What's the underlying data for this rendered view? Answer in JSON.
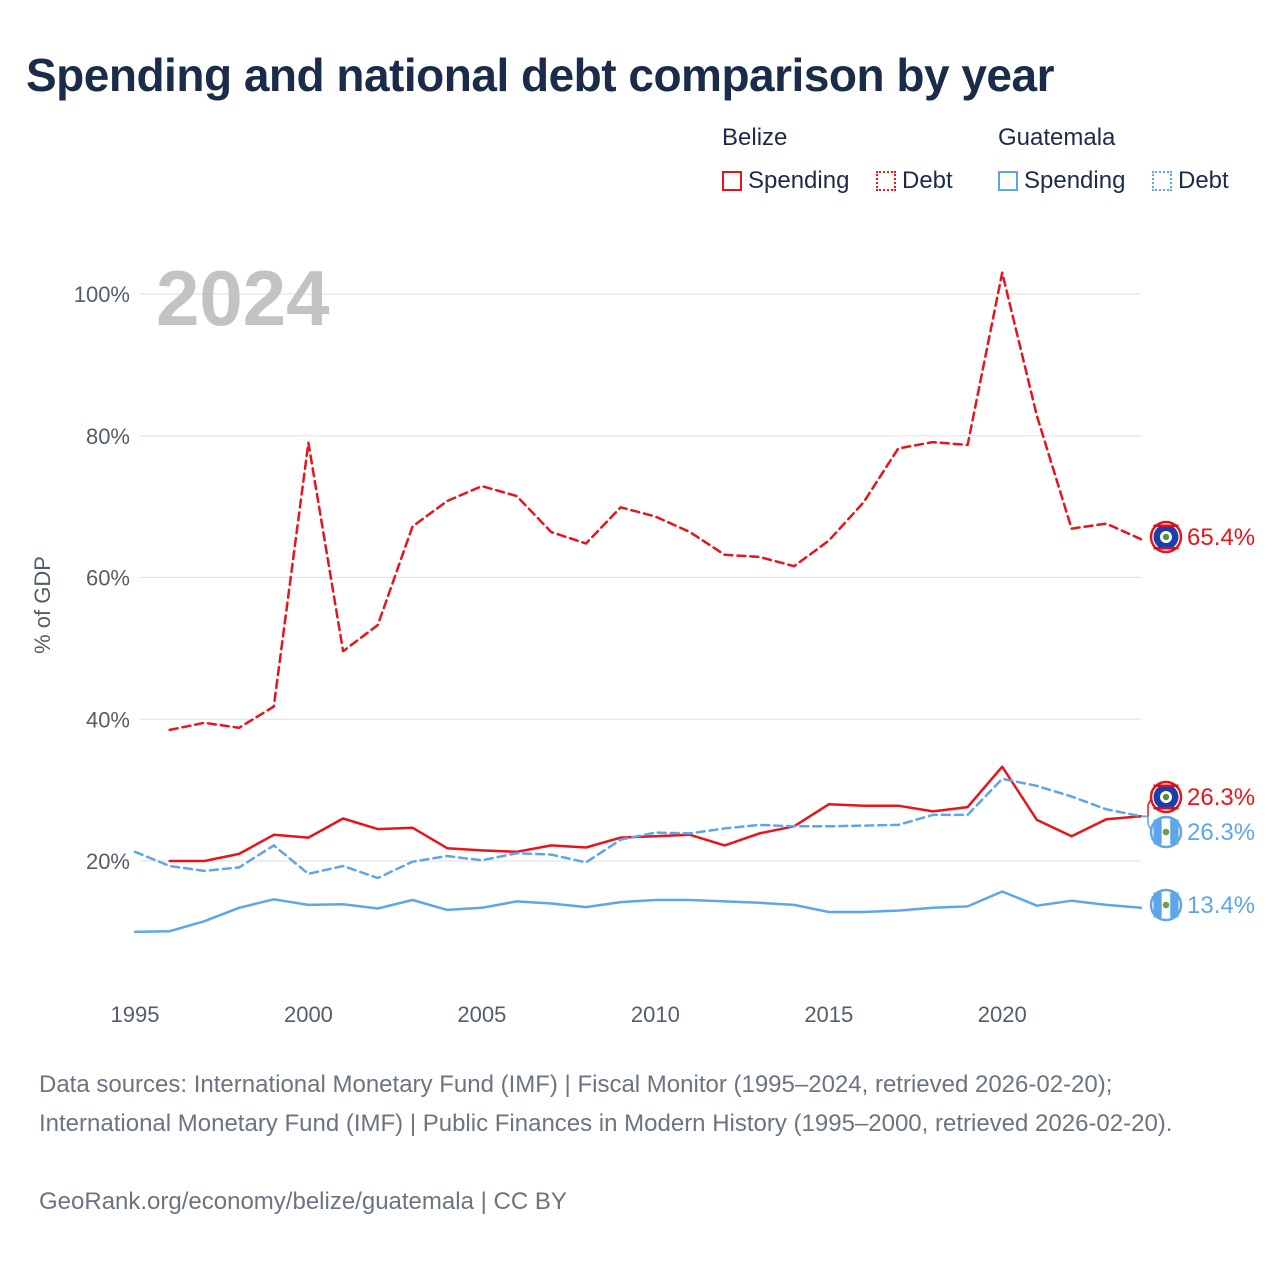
{
  "title": "Spending and national debt comparison by year",
  "legend": {
    "groups": [
      {
        "name": "Belize",
        "items": [
          "Spending",
          "Debt"
        ]
      },
      {
        "name": "Guatemala",
        "items": [
          "Spending",
          "Debt"
        ]
      }
    ]
  },
  "colors": {
    "belize": "#e8141c",
    "guatemala": "#5fa6e8",
    "title": "#1b2c4a",
    "grid": "#e4e4e4"
  },
  "year_watermark": "2024",
  "chart_data": {
    "type": "line",
    "title": "Spending and national debt comparison by year",
    "xlabel": "",
    "ylabel": "% of GDP",
    "xlim": [
      1995,
      2024
    ],
    "ylim": [
      8,
      105
    ],
    "x_ticks": [
      1995,
      2000,
      2005,
      2010,
      2015,
      2020
    ],
    "x_tick_labels": [
      "1995",
      "2000",
      "2005",
      "2010",
      "2015",
      "2020"
    ],
    "y_ticks": [
      20,
      40,
      60,
      80,
      100
    ],
    "y_tick_labels": [
      "20%",
      "40%",
      "60%",
      "80%",
      "100%"
    ],
    "grid": true,
    "series": [
      {
        "name": "Belize Debt",
        "country": "Belize",
        "measure": "Debt",
        "style": "dashed",
        "color": "#e8141c",
        "x": [
          1996,
          1997,
          1998,
          1999,
          2000,
          2001,
          2002,
          2003,
          2004,
          2005,
          2006,
          2007,
          2008,
          2009,
          2010,
          2011,
          2012,
          2013,
          2014,
          2015,
          2016,
          2017,
          2018,
          2019,
          2020,
          2021,
          2022,
          2023,
          2024
        ],
        "values": [
          38.5,
          39.5,
          38.8,
          41.8,
          79.0,
          49.6,
          53.3,
          67.2,
          70.8,
          72.9,
          71.5,
          66.4,
          64.8,
          69.9,
          68.6,
          66.4,
          63.2,
          62.9,
          61.6,
          65.2,
          70.6,
          78.2,
          79.1,
          78.7,
          103.0,
          82.8,
          66.9,
          67.6,
          65.4
        ],
        "end_label": "65.4%"
      },
      {
        "name": "Belize Spending",
        "country": "Belize",
        "measure": "Spending",
        "style": "solid",
        "color": "#e8141c",
        "x": [
          1996,
          1997,
          1998,
          1999,
          2000,
          2001,
          2002,
          2003,
          2004,
          2005,
          2006,
          2007,
          2008,
          2009,
          2010,
          2011,
          2012,
          2013,
          2014,
          2015,
          2016,
          2017,
          2018,
          2019,
          2020,
          2021,
          2022,
          2023,
          2024
        ],
        "values": [
          20.0,
          20.0,
          21.0,
          23.7,
          23.3,
          26.0,
          24.5,
          24.7,
          21.8,
          21.5,
          21.3,
          22.2,
          21.9,
          23.3,
          23.5,
          23.7,
          22.2,
          23.9,
          24.9,
          28.0,
          27.8,
          27.8,
          27.0,
          27.6,
          33.3,
          25.8,
          23.5,
          25.9,
          26.3
        ],
        "end_label": "26.3%"
      },
      {
        "name": "Guatemala Debt",
        "country": "Guatemala",
        "measure": "Debt",
        "style": "dashed",
        "color": "#5fa6e8",
        "x": [
          1995,
          1996,
          1997,
          1998,
          1999,
          2000,
          2001,
          2002,
          2003,
          2004,
          2005,
          2006,
          2007,
          2008,
          2009,
          2010,
          2011,
          2012,
          2013,
          2014,
          2015,
          2016,
          2017,
          2018,
          2019,
          2020,
          2021,
          2022,
          2023,
          2024
        ],
        "values": [
          21.3,
          19.3,
          18.6,
          19.1,
          22.2,
          18.2,
          19.3,
          17.6,
          19.9,
          20.7,
          20.1,
          21.1,
          20.9,
          19.8,
          23.0,
          24.0,
          23.9,
          24.6,
          25.1,
          24.9,
          24.9,
          25.0,
          25.1,
          26.5,
          26.5,
          31.6,
          30.6,
          29.1,
          27.3,
          26.3
        ],
        "end_label": "26.3%"
      },
      {
        "name": "Guatemala Spending",
        "country": "Guatemala",
        "measure": "Spending",
        "style": "solid",
        "color": "#5fa6e8",
        "x": [
          1995,
          1996,
          1997,
          1998,
          1999,
          2000,
          2001,
          2002,
          2003,
          2004,
          2005,
          2006,
          2007,
          2008,
          2009,
          2010,
          2011,
          2012,
          2013,
          2014,
          2015,
          2016,
          2017,
          2018,
          2019,
          2020,
          2021,
          2022,
          2023,
          2024
        ],
        "values": [
          10.0,
          10.1,
          11.5,
          13.4,
          14.6,
          13.8,
          13.9,
          13.3,
          14.5,
          13.1,
          13.4,
          14.3,
          14.0,
          13.5,
          14.2,
          14.5,
          14.5,
          14.3,
          14.1,
          13.8,
          12.8,
          12.8,
          13.0,
          13.4,
          13.6,
          15.7,
          13.7,
          14.4,
          13.8,
          13.4
        ],
        "end_label": "13.4%"
      }
    ]
  },
  "footer": {
    "sources": "Data sources: International Monetary Fund (IMF) | Fiscal Monitor (1995–2024, retrieved 2026-02-20); International Monetary Fund (IMF) | Public Finances in Modern History (1995–2000, retrieved 2026-02-20).",
    "credit": "GeoRank.org/economy/belize/guatemala | CC BY"
  }
}
